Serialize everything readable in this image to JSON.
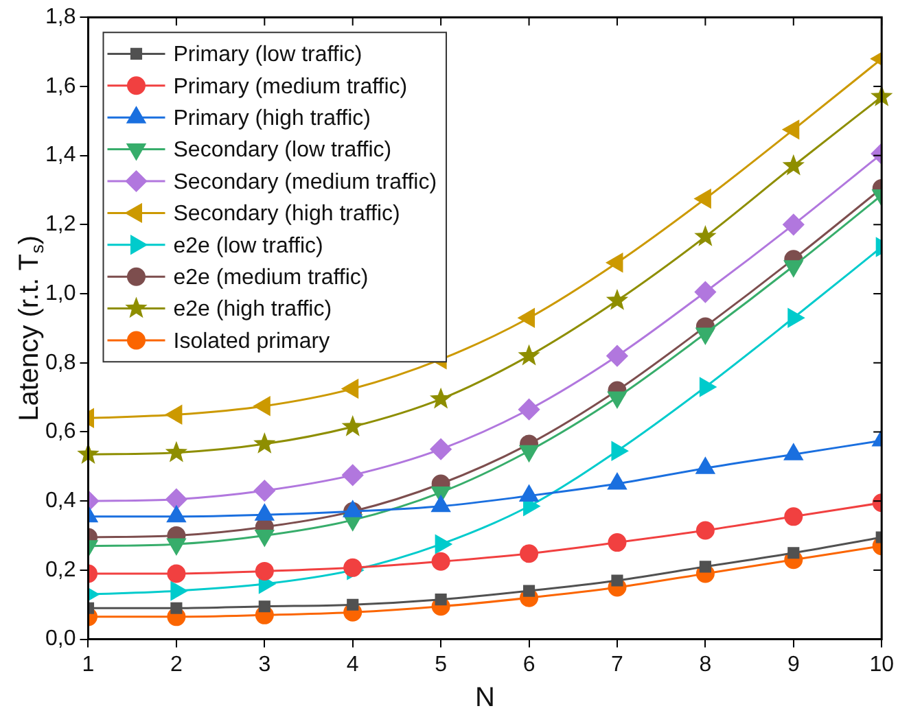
{
  "chart_data": {
    "type": "line",
    "xlabel": "N",
    "ylabel": "Latency (r.t. T$_{s}$)",
    "x": [
      1,
      2,
      3,
      4,
      5,
      6,
      7,
      8,
      9,
      10
    ],
    "xlim": [
      1,
      10
    ],
    "xticks": [
      1,
      2,
      3,
      4,
      5,
      6,
      7,
      8,
      9,
      10
    ],
    "ylim": [
      0,
      1.8
    ],
    "yticks": [
      {
        "value": 0,
        "label": "0,0"
      },
      {
        "value": 0.2,
        "label": "0,2"
      },
      {
        "value": 0.4,
        "label": "0,4"
      },
      {
        "value": 0.6,
        "label": "0,6"
      },
      {
        "value": 0.8,
        "label": "0,8"
      },
      {
        "value": 1.0,
        "label": "1,0"
      },
      {
        "value": 1.2,
        "label": "1,2"
      },
      {
        "value": 1.4,
        "label": "1,4"
      },
      {
        "value": 1.6,
        "label": "1,6"
      },
      {
        "value": 1.8,
        "label": "1,8"
      }
    ],
    "grid": false,
    "legend": "top left",
    "line_style": "solid",
    "series": [
      {
        "name": "Primary (low traffic)",
        "color": "#515151",
        "marker": "square",
        "values": [
          0.09,
          0.09,
          0.095,
          0.1,
          0.115,
          0.14,
          0.17,
          0.21,
          0.25,
          0.295
        ]
      },
      {
        "name": "Primary (medium traffic)",
        "color": "#f14040",
        "marker": "circle",
        "values": [
          0.19,
          0.19,
          0.197,
          0.207,
          0.225,
          0.248,
          0.28,
          0.315,
          0.355,
          0.395
        ]
      },
      {
        "name": "Primary (high traffic)",
        "color": "#1a6fdf",
        "marker": "triangle",
        "values": [
          0.355,
          0.355,
          0.36,
          0.37,
          0.385,
          0.415,
          0.45,
          0.495,
          0.535,
          0.575
        ]
      },
      {
        "name": "Secondary (low traffic)",
        "color": "#37ad6b",
        "marker": "triangle-down",
        "values": [
          0.27,
          0.275,
          0.3,
          0.345,
          0.425,
          0.545,
          0.7,
          0.885,
          1.08,
          1.285
        ]
      },
      {
        "name": "Secondary (medium traffic)",
        "color": "#b177de",
        "marker": "diamond",
        "values": [
          0.4,
          0.405,
          0.43,
          0.475,
          0.55,
          0.665,
          0.82,
          1.005,
          1.2,
          1.405
        ]
      },
      {
        "name": "Secondary (high traffic)",
        "color": "#cc9900",
        "marker": "triangle-left",
        "values": [
          0.64,
          0.65,
          0.675,
          0.725,
          0.81,
          0.93,
          1.09,
          1.275,
          1.475,
          1.68
        ]
      },
      {
        "name": "e2e (low traffic)",
        "color": "#00cbcc",
        "marker": "triangle-right",
        "values": [
          0.13,
          0.14,
          0.16,
          0.2,
          0.275,
          0.385,
          0.545,
          0.73,
          0.93,
          1.135
        ]
      },
      {
        "name": "e2e (medium traffic)",
        "color": "#7d4e4e",
        "marker": "circle",
        "values": [
          0.295,
          0.3,
          0.325,
          0.37,
          0.45,
          0.565,
          0.72,
          0.905,
          1.1,
          1.305
        ]
      },
      {
        "name": "e2e (high traffic)",
        "color": "#8e8e00",
        "marker": "star",
        "values": [
          0.535,
          0.54,
          0.565,
          0.615,
          0.695,
          0.82,
          0.98,
          1.165,
          1.37,
          1.57
        ]
      },
      {
        "name": "Isolated primary",
        "color": "#fb6501",
        "marker": "circle",
        "values": [
          0.065,
          0.065,
          0.07,
          0.078,
          0.095,
          0.12,
          0.15,
          0.19,
          0.23,
          0.27
        ]
      }
    ]
  }
}
